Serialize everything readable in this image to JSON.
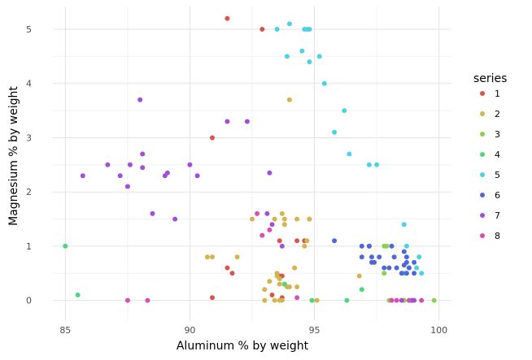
{
  "chart_data": {
    "type": "scatter",
    "title": "",
    "xlabel": "Aluminum % by weight",
    "ylabel": "Magnesium % by weight",
    "xlim": [
      84.5,
      100.5
    ],
    "ylim": [
      -0.38,
      5.42
    ],
    "xticks": [
      85,
      90,
      95,
      100
    ],
    "yticks": [
      0,
      1,
      2,
      3,
      4,
      5
    ],
    "grid": true,
    "legend": {
      "title": "series",
      "position": "right"
    },
    "series": [
      {
        "name": "1",
        "color": "#d9544f",
        "points": [
          [
            91.5,
            5.2
          ],
          [
            92.9,
            5.0
          ],
          [
            90.9,
            3.0
          ],
          [
            93.6,
            1.1
          ],
          [
            94.3,
            1.1
          ],
          [
            94.6,
            1.1
          ],
          [
            91.5,
            0.6
          ],
          [
            91.7,
            0.5
          ],
          [
            93.6,
            0.45
          ],
          [
            93.7,
            0.45
          ],
          [
            93.3,
            0.1
          ],
          [
            93.7,
            0.05
          ],
          [
            90.9,
            0.05
          ]
        ]
      },
      {
        "name": "2",
        "color": "#d4b44e",
        "points": [
          [
            94.0,
            3.7
          ],
          [
            92.5,
            1.5
          ],
          [
            93.4,
            1.5
          ],
          [
            93.7,
            1.6
          ],
          [
            93.8,
            1.5
          ],
          [
            93.8,
            1.4
          ],
          [
            94.3,
            1.5
          ],
          [
            94.8,
            1.5
          ],
          [
            94.6,
            1.0
          ],
          [
            94.7,
            1.1
          ],
          [
            90.7,
            0.8
          ],
          [
            90.9,
            0.8
          ],
          [
            91.9,
            0.8
          ],
          [
            94.2,
            0.6
          ],
          [
            93.5,
            0.5
          ],
          [
            93.5,
            0.45
          ],
          [
            93.6,
            0.4
          ],
          [
            93.2,
            0.35
          ],
          [
            93.6,
            0.3
          ],
          [
            93.8,
            0.3
          ],
          [
            93.9,
            0.25
          ],
          [
            94.0,
            0.25
          ],
          [
            94.3,
            0.25
          ],
          [
            93.0,
            0.2
          ],
          [
            93.0,
            0.0
          ],
          [
            93.4,
            0.0
          ],
          [
            93.6,
            0.0
          ],
          [
            93.7,
            0.0
          ],
          [
            95.1,
            0.0
          ],
          [
            96.8,
            0.45
          ],
          [
            98.6,
            0.0
          ]
        ]
      },
      {
        "name": "3",
        "color": "#8fd14f",
        "points": [
          [
            97.8,
            1.0
          ],
          [
            97.9,
            1.0
          ],
          [
            97.8,
            0.5
          ],
          [
            98.0,
            0.0
          ],
          [
            98.6,
            0.0
          ],
          [
            99.8,
            0.0
          ]
        ]
      },
      {
        "name": "4",
        "color": "#4fd67a",
        "points": [
          [
            85.0,
            1.0
          ],
          [
            85.5,
            0.1
          ],
          [
            93.8,
            0.3
          ],
          [
            96.9,
            0.2
          ],
          [
            94.9,
            0.0
          ],
          [
            96.3,
            0.0
          ]
        ]
      },
      {
        "name": "5",
        "color": "#4dd2e3",
        "points": [
          [
            94.0,
            5.1
          ],
          [
            93.5,
            5.0
          ],
          [
            94.6,
            5.0
          ],
          [
            94.7,
            5.0
          ],
          [
            94.8,
            5.0
          ],
          [
            94.5,
            4.6
          ],
          [
            93.9,
            4.5
          ],
          [
            95.2,
            4.5
          ],
          [
            94.8,
            4.4
          ],
          [
            95.4,
            4.0
          ],
          [
            96.2,
            3.5
          ],
          [
            95.8,
            3.1
          ],
          [
            96.4,
            2.7
          ],
          [
            97.2,
            2.5
          ],
          [
            97.5,
            2.5
          ],
          [
            98.6,
            1.4
          ],
          [
            98.7,
            1.0
          ],
          [
            99.2,
            0.8
          ],
          [
            98.8,
            0.6
          ],
          [
            99.1,
            0.6
          ],
          [
            99.3,
            0.5
          ],
          [
            98.6,
            0.5
          ]
        ]
      },
      {
        "name": "6",
        "color": "#5068d6",
        "points": [
          [
            95.8,
            1.1
          ],
          [
            96.9,
            1.0
          ],
          [
            97.2,
            1.0
          ],
          [
            97.2,
            1.0
          ],
          [
            98.1,
            1.0
          ],
          [
            98.6,
            0.9
          ],
          [
            96.9,
            0.8
          ],
          [
            97.3,
            0.8
          ],
          [
            97.6,
            0.8
          ],
          [
            98.2,
            0.8
          ],
          [
            98.7,
            0.8
          ],
          [
            97.3,
            0.7
          ],
          [
            97.4,
            0.7
          ],
          [
            98.7,
            0.7
          ],
          [
            99.0,
            0.7
          ],
          [
            98.6,
            0.65
          ],
          [
            97.8,
            0.6
          ],
          [
            98.0,
            0.6
          ],
          [
            98.3,
            0.6
          ],
          [
            98.8,
            0.6
          ],
          [
            99.0,
            0.5
          ],
          [
            98.5,
            0.5
          ],
          [
            98.7,
            0.5
          ],
          [
            98.9,
            0.0
          ]
        ]
      },
      {
        "name": "7",
        "color": "#a14fd6",
        "points": [
          [
            88.0,
            3.7
          ],
          [
            91.5,
            3.3
          ],
          [
            92.3,
            3.3
          ],
          [
            86.7,
            2.5
          ],
          [
            87.6,
            2.5
          ],
          [
            88.1,
            2.7
          ],
          [
            88.1,
            2.45
          ],
          [
            90.0,
            2.5
          ],
          [
            85.7,
            2.3
          ],
          [
            87.2,
            2.3
          ],
          [
            89.0,
            2.3
          ],
          [
            89.1,
            2.35
          ],
          [
            90.3,
            2.3
          ],
          [
            93.2,
            2.35
          ],
          [
            87.5,
            2.1
          ],
          [
            88.5,
            1.6
          ],
          [
            89.4,
            1.5
          ],
          [
            93.1,
            1.6
          ],
          [
            93.3,
            1.4
          ],
          [
            93.7,
            1.0
          ],
          [
            98.5,
            0.0
          ],
          [
            99.0,
            0.0
          ]
        ]
      },
      {
        "name": "8",
        "color": "#d64fb4",
        "points": [
          [
            92.7,
            1.6
          ],
          [
            93.2,
            1.3
          ],
          [
            92.9,
            1.2
          ],
          [
            87.5,
            0.0
          ],
          [
            88.3,
            0.0
          ],
          [
            94.3,
            0.05
          ],
          [
            98.1,
            0.0
          ],
          [
            98.3,
            0.0
          ],
          [
            98.8,
            0.0
          ],
          [
            99.3,
            0.0
          ]
        ]
      }
    ]
  }
}
